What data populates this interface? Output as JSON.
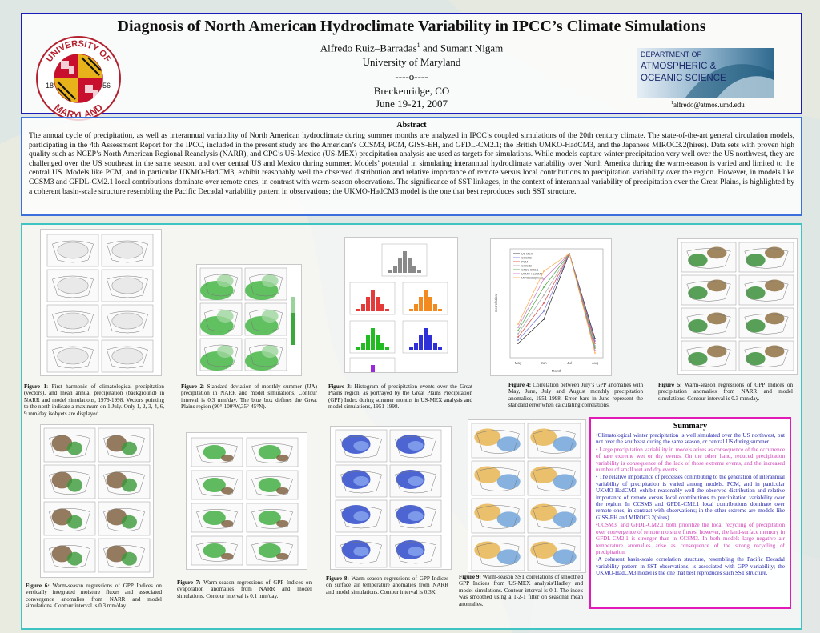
{
  "header": {
    "title": "Diagnosis of North American Hydroclimate Variability in IPCC’s Climate Simulations",
    "authors": "Alfredo Ruiz–Barradas",
    "authors_sup": "1",
    "authors_rest": " and Sumant Nigam",
    "affiliation": "University of Maryland",
    "separator": "----o----",
    "location": "Breckenridge, CO",
    "dates": "June 19-21, 2007",
    "email_sup": "1",
    "email": "alfredo@atmos.umd.edu",
    "umd_logo": {
      "top_text": "UNIVERSITY OF",
      "bottom_text": "MARYLAND",
      "year_left": "18",
      "year_right": "56"
    },
    "aos_logo": {
      "line1": "DEPARTMENT OF",
      "line2": "ATMOSPHERIC &",
      "line3": "OCEANIC SCIENCE"
    }
  },
  "abstract": {
    "heading": "Abstract",
    "text": "The annual cycle of precipitation, as well as interannual variability of North American hydroclimate during summer months are analyzed in IPCC’s coupled simulations of the 20th century climate. The state-of-the-art general circulation models, participating in the 4th Assessment Report for the IPCC, included in the present study are the American’s CCSM3, PCM, GISS-EH, and GFDL-CM2.1; the British UMKO-HadCM3, and the Japanese MIROC3.2(hires). Data sets with proven high quality such as NCEP’s North American Regional Reanalysis (NARR), and CPC’s US-Mexico (US-MEX) precipitation analysis are used as targets for simulations. While models capture winter precipitation very well over the US northwest, they are challenged over the US southeast in the same season, and over central US and Mexico during summer. Models’ potential in simulating interannual hydroclimate variability over North America during the warm-season is varied and limited to the central US. Models like PCM, and in particular UKMO-HadCM3, exhibit reasonably well the observed distribution and relative importance of remote versus local contributions to precipitation variability over the region. However, in models like CCSM3 and GFDL-CM2.1 local contributions dominate over remote ones, in contrast with warm-season observations. The significance of SST linkages, in the context of interannual variability of precipitation over the Great Plains, is highlighted by a coherent basin-scale structure resembling the Pacific Decadal variability pattern in observations; the UKMO-HadCM3 model is the one that best reproduces such SST structure."
  },
  "figures": [
    {
      "label": "Figure 1",
      "text": ": First harmonic of climatological precipitation (vectors), and mean annual precipitation (background) in NARR and model simulations, 1979-1998. Vectors pointing to the north indicate a maximum on 1 July. Only 1, 2, 3, 4, 6, 9 mm/day isohyets are displayed."
    },
    {
      "label": "Figure 2",
      "text": ": Standard deviation of monthly summer (JJA) precipitation in NARR and model simulations. Contour interval is 0.3 mm/day. The blue box defines the Great Plains region (90°-100°W,35°-45°N)."
    },
    {
      "label": "Figure 3",
      "text": ": Histogram of precipitation events over the Great Plains region, as portrayed by the Great Plains Precipitation (GPP) Index during summer months in US-MEX analysis and model simulations, 1951-1998."
    },
    {
      "label": "Figure 4:",
      "text": " Correlation between July’s GPP anomalies with May, June, July and August monthly precipitation anomalies, 1951-1998. Error bars in June represent the standard error when calculating correlations."
    },
    {
      "label": "Figure 5:",
      "text": " Warm-season regressions of GPP Indices on precipitation anomalies from NARR and model simulations. Contour interval is 0.3 mm/day."
    },
    {
      "label": "Figure 6:",
      "text": " Warm-season regressions of GPP Indices on vertically integrated moisture fluxes and associated convergence anomalies from NARR and model simulations. Contour interval is 0.3 mm/day."
    },
    {
      "label": "Figure 7:",
      "text": " Warm-season regressions of GPP Indices on evaporation anomalies from NARR and model simulations. Contour interval is 0.1 mm/day."
    },
    {
      "label": "Figure 8:",
      "text": " Warm-season regressions of GPP Indices on surface air temperature anomalies from NARR and model simulations. Contour interval is 0.3K."
    },
    {
      "label": "Figure 9:",
      "text": " Warm-season SST correlations of smoothed GPP Indices from US-MEX analysis/Hadley and model simulations. Contour interval is 0.1. The index was smoothed using a 1-2-1 filter on seasonal mean anomalies."
    }
  ],
  "summary": {
    "heading": "Summary",
    "items": [
      {
        "style": "b",
        "text": "•Climatological winter precipitation is well simulated over the US northwest, but not over the southeast during the same season, or  central US during summer."
      },
      {
        "style": "m",
        "text": "• Large precipitation variability in models arises as consequence of the occurrence of rare  extreme wet or dry events. On the other hand, reduced precipitation variability is consequence of the lack of those extreme events, and the increased number of small wet and dry events."
      },
      {
        "style": "b",
        "text": "• The relative importance of processes contributing to the generation of interannual variability of precipitation is varied among models. PCM, and in particular  UKMO-HadCM3,  exhibit  reasonably  well  the  observed distribution and relative importance of remote versus local contributions to precipitation variability over the region. In CCSM3 and GFDL-CM2.1 local contributions dominate over remote ones, in contrast with observations; in the other extreme are models like GISS-EH and MIROC3.2(hires)."
      },
      {
        "style": "m",
        "text": "•CCSM3, and GFDL-CM2.1 both prioritize the local recycling of precipitation over convergence of remote moisture fluxes; however, the land-surface memory in GFDL-CM2.1 is stronger than in CCSM3. In both models large negative air temperature anomalies arise as consequence of the strong recycling of precipitation."
      },
      {
        "style": "b",
        "text": "•A coherent basin-scale correlation structure, resembling the Pacific Decadal variability pattern in SST observations, is associated with GPP variability; the UKMO-HadCM3 model is the one that best reproduces such SST structure."
      }
    ]
  },
  "fig4_chart": {
    "xlabel": "Month",
    "ylabel": "Correlation",
    "ticks": [
      "May",
      "Jun",
      "Jul",
      "Aug"
    ],
    "legend": [
      "US-MEX",
      "CCSM3",
      "PCM",
      "GISS-EH",
      "GFDL-CM2.1",
      "UKMO-HadCM3",
      "MIROC3.2(hires)"
    ],
    "colors": [
      "#222222",
      "#7777dd",
      "#dd4444",
      "#aaaaaa",
      "#44aa44",
      "#cc77cc",
      "#ffaa44"
    ]
  },
  "fig3_colors": [
    "#8a8a8a",
    "#e53a3a",
    "#f28a1f",
    "#22bb22",
    "#3030d8",
    "#9a2ad8"
  ]
}
